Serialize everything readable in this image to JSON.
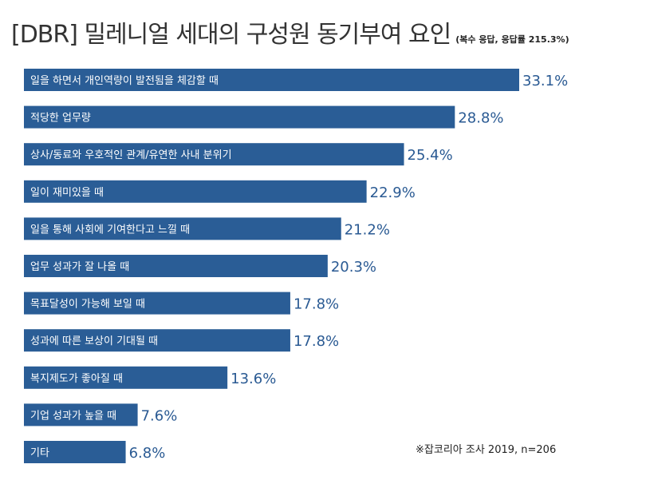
{
  "header": {
    "title": "[DBR] 밀레니얼 세대의 구성원 동기부여 요인",
    "subtitle": "(복수 응답, 응답률 215.3%)"
  },
  "source_note": "※잡코리아 조사 2019, n=206",
  "colors": {
    "bar": "#2a5d96",
    "bar_text": "#ffffff",
    "value_text": "#2a5a93"
  },
  "chart_data": {
    "type": "bar",
    "orientation": "horizontal",
    "title": "[DBR] 밀레니얼 세대의 구성원 동기부여 요인",
    "subtitle": "(복수 응답, 응답률 215.3%)",
    "categories": [
      "일을 하면서 개인역량이 발전됨을 체감할 때",
      "적당한 업무량",
      "상사/동료와 우호적인 관계/유연한 사내 분위기",
      "일이 재미있을 때",
      "일을 통해 사회에 기여한다고 느낄 때",
      "업무 성과가 잘 나올 때",
      "목표달성이 가능해 보일 때",
      "성과에 따른 보상이 기대될 때",
      "복지제도가 좋아질 때",
      "기업 성과가 높을 때",
      "기타"
    ],
    "values": [
      33.1,
      28.8,
      25.4,
      22.9,
      21.2,
      20.3,
      17.8,
      17.8,
      13.6,
      7.6,
      6.8
    ],
    "value_labels": [
      "33.1%",
      "28.8%",
      "25.4%",
      "22.9%",
      "21.2%",
      "20.3%",
      "17.8%",
      "17.8%",
      "13.6%",
      "7.6%",
      "6.8%"
    ],
    "unit": "%",
    "xlim": [
      0,
      35
    ],
    "grid": false,
    "legend": "none"
  }
}
